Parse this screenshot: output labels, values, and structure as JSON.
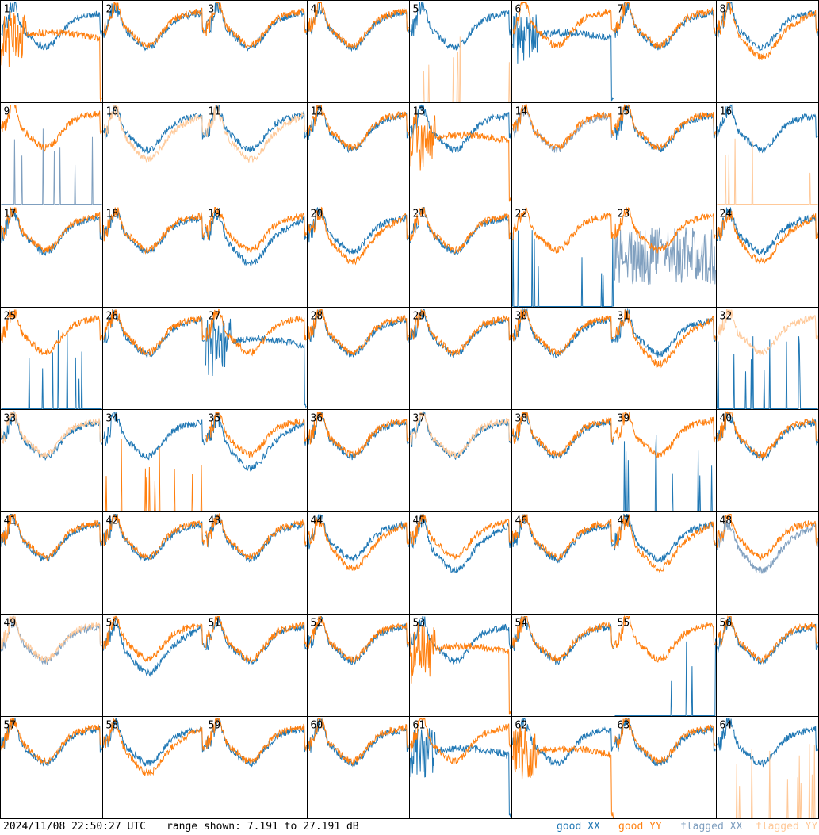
{
  "footer": {
    "timestamp": "2024/11/08 22:50:27 UTC",
    "range_text": "range shown: 7.191 to 27.191 dB"
  },
  "legend": [
    {
      "key": "good_xx",
      "label": "good XX",
      "color": "#1f77b4"
    },
    {
      "key": "good_yy",
      "label": "good YY",
      "color": "#ff7f0e"
    },
    {
      "key": "flagged_xx",
      "label": "flagged XX",
      "color": "#7f9fbf"
    },
    {
      "key": "flagged_yy",
      "label": "flagged YY",
      "color": "#ffc999"
    }
  ],
  "chart_data": {
    "type": "line",
    "layout": "small-multiples 8x8",
    "ylim": [
      7.191,
      27.191
    ],
    "yunit": "dB",
    "panels": [
      {
        "label": "1",
        "xx": "good",
        "yy": "good",
        "xx_shape": "normal",
        "yy_shape": "dip"
      },
      {
        "label": "2",
        "xx": "good",
        "yy": "good",
        "xx_shape": "normal",
        "yy_shape": "normal"
      },
      {
        "label": "3",
        "xx": "good",
        "yy": "good",
        "xx_shape": "normal",
        "yy_shape": "normal"
      },
      {
        "label": "4",
        "xx": "good",
        "yy": "good",
        "xx_shape": "normal",
        "yy_shape": "normal"
      },
      {
        "label": "5",
        "xx": "good",
        "yy": "flagged",
        "xx_shape": "normal",
        "yy_shape": "spikes"
      },
      {
        "label": "6",
        "xx": "good",
        "yy": "good",
        "xx_shape": "dip",
        "yy_shape": "normal"
      },
      {
        "label": "7",
        "xx": "good",
        "yy": "good",
        "xx_shape": "normal",
        "yy_shape": "normal"
      },
      {
        "label": "8",
        "xx": "good",
        "yy": "good",
        "xx_shape": "normal",
        "yy_shape": "low"
      },
      {
        "label": "9",
        "xx": "flagged",
        "yy": "good",
        "xx_shape": "spikes",
        "yy_shape": "normal"
      },
      {
        "label": "10",
        "xx": "good",
        "yy": "flagged",
        "xx_shape": "normal",
        "yy_shape": "low"
      },
      {
        "label": "11",
        "xx": "good",
        "yy": "flagged",
        "xx_shape": "normal",
        "yy_shape": "low"
      },
      {
        "label": "12",
        "xx": "good",
        "yy": "good",
        "xx_shape": "normal",
        "yy_shape": "normal"
      },
      {
        "label": "13",
        "xx": "good",
        "yy": "good",
        "xx_shape": "normal",
        "yy_shape": "dip"
      },
      {
        "label": "14",
        "xx": "flagged",
        "yy": "good",
        "xx_shape": "normal",
        "yy_shape": "normal"
      },
      {
        "label": "15",
        "xx": "good",
        "yy": "good",
        "xx_shape": "normal",
        "yy_shape": "normal"
      },
      {
        "label": "16",
        "xx": "good",
        "yy": "flagged",
        "xx_shape": "normal",
        "yy_shape": "spikes"
      },
      {
        "label": "17",
        "xx": "good",
        "yy": "good",
        "xx_shape": "normal",
        "yy_shape": "normal"
      },
      {
        "label": "18",
        "xx": "good",
        "yy": "good",
        "xx_shape": "normal",
        "yy_shape": "normal"
      },
      {
        "label": "19",
        "xx": "good",
        "yy": "good",
        "xx_shape": "low",
        "yy_shape": "normal"
      },
      {
        "label": "20",
        "xx": "good",
        "yy": "good",
        "xx_shape": "normal",
        "yy_shape": "low"
      },
      {
        "label": "21",
        "xx": "good",
        "yy": "good",
        "xx_shape": "normal",
        "yy_shape": "normal"
      },
      {
        "label": "22",
        "xx": "good",
        "yy": "good",
        "xx_shape": "spikes",
        "yy_shape": "normal"
      },
      {
        "label": "23",
        "xx": "flagged",
        "yy": "good",
        "xx_shape": "noise",
        "yy_shape": "normal"
      },
      {
        "label": "24",
        "xx": "good",
        "yy": "good",
        "xx_shape": "normal",
        "yy_shape": "low"
      },
      {
        "label": "25",
        "xx": "good",
        "yy": "good",
        "xx_shape": "spikes",
        "yy_shape": "normal"
      },
      {
        "label": "26",
        "xx": "good",
        "yy": "good",
        "xx_shape": "normal",
        "yy_shape": "normal"
      },
      {
        "label": "27",
        "xx": "good",
        "yy": "good",
        "xx_shape": "dip",
        "yy_shape": "normal"
      },
      {
        "label": "28",
        "xx": "good",
        "yy": "good",
        "xx_shape": "normal",
        "yy_shape": "normal"
      },
      {
        "label": "29",
        "xx": "good",
        "yy": "good",
        "xx_shape": "normal",
        "yy_shape": "normal"
      },
      {
        "label": "30",
        "xx": "good",
        "yy": "good",
        "xx_shape": "normal",
        "yy_shape": "normal"
      },
      {
        "label": "31",
        "xx": "good",
        "yy": "good",
        "xx_shape": "normal",
        "yy_shape": "low"
      },
      {
        "label": "32",
        "xx": "good",
        "yy": "flagged",
        "xx_shape": "spikes",
        "yy_shape": "normal"
      },
      {
        "label": "33",
        "xx": "good",
        "yy": "flagged",
        "xx_shape": "normal",
        "yy_shape": "normal"
      },
      {
        "label": "34",
        "xx": "good",
        "yy": "good",
        "xx_shape": "normal",
        "yy_shape": "spikes"
      },
      {
        "label": "35",
        "xx": "good",
        "yy": "good",
        "xx_shape": "low",
        "yy_shape": "normal"
      },
      {
        "label": "36",
        "xx": "good",
        "yy": "good",
        "xx_shape": "normal",
        "yy_shape": "normal"
      },
      {
        "label": "37",
        "xx": "good",
        "yy": "flagged",
        "xx_shape": "normal",
        "yy_shape": "normal"
      },
      {
        "label": "38",
        "xx": "good",
        "yy": "good",
        "xx_shape": "normal",
        "yy_shape": "normal"
      },
      {
        "label": "39",
        "xx": "good",
        "yy": "good",
        "xx_shape": "spikes",
        "yy_shape": "normal"
      },
      {
        "label": "40",
        "xx": "good",
        "yy": "good",
        "xx_shape": "normal",
        "yy_shape": "normal"
      },
      {
        "label": "41",
        "xx": "good",
        "yy": "good",
        "xx_shape": "normal",
        "yy_shape": "normal"
      },
      {
        "label": "42",
        "xx": "good",
        "yy": "good",
        "xx_shape": "normal",
        "yy_shape": "normal"
      },
      {
        "label": "43",
        "xx": "good",
        "yy": "good",
        "xx_shape": "normal",
        "yy_shape": "normal"
      },
      {
        "label": "44",
        "xx": "good",
        "yy": "good",
        "xx_shape": "normal",
        "yy_shape": "low"
      },
      {
        "label": "45",
        "xx": "good",
        "yy": "good",
        "xx_shape": "low",
        "yy_shape": "normal"
      },
      {
        "label": "46",
        "xx": "good",
        "yy": "good",
        "xx_shape": "normal",
        "yy_shape": "normal"
      },
      {
        "label": "47",
        "xx": "good",
        "yy": "good",
        "xx_shape": "normal",
        "yy_shape": "low"
      },
      {
        "label": "48",
        "xx": "flagged",
        "yy": "good",
        "xx_shape": "low",
        "yy_shape": "normal"
      },
      {
        "label": "49",
        "xx": "flagged",
        "yy": "flagged",
        "xx_shape": "normal",
        "yy_shape": "normal"
      },
      {
        "label": "50",
        "xx": "good",
        "yy": "good",
        "xx_shape": "low",
        "yy_shape": "normal"
      },
      {
        "label": "51",
        "xx": "good",
        "yy": "good",
        "xx_shape": "normal",
        "yy_shape": "normal"
      },
      {
        "label": "52",
        "xx": "good",
        "yy": "good",
        "xx_shape": "normal",
        "yy_shape": "normal"
      },
      {
        "label": "53",
        "xx": "good",
        "yy": "good",
        "xx_shape": "normal",
        "yy_shape": "dip"
      },
      {
        "label": "54",
        "xx": "good",
        "yy": "good",
        "xx_shape": "normal",
        "yy_shape": "normal"
      },
      {
        "label": "55",
        "xx": "good",
        "yy": "good",
        "xx_shape": "spikes",
        "yy_shape": "normal"
      },
      {
        "label": "56",
        "xx": "good",
        "yy": "good",
        "xx_shape": "normal",
        "yy_shape": "normal"
      },
      {
        "label": "57",
        "xx": "good",
        "yy": "good",
        "xx_shape": "normal",
        "yy_shape": "normal"
      },
      {
        "label": "58",
        "xx": "good",
        "yy": "good",
        "xx_shape": "normal",
        "yy_shape": "low"
      },
      {
        "label": "59",
        "xx": "good",
        "yy": "good",
        "xx_shape": "normal",
        "yy_shape": "normal"
      },
      {
        "label": "60",
        "xx": "good",
        "yy": "good",
        "xx_shape": "normal",
        "yy_shape": "normal"
      },
      {
        "label": "61",
        "xx": "good",
        "yy": "good",
        "xx_shape": "dip",
        "yy_shape": "normal"
      },
      {
        "label": "62",
        "xx": "good",
        "yy": "good",
        "xx_shape": "normal",
        "yy_shape": "dip"
      },
      {
        "label": "63",
        "xx": "good",
        "yy": "good",
        "xx_shape": "normal",
        "yy_shape": "normal"
      },
      {
        "label": "64",
        "xx": "good",
        "yy": "flagged",
        "xx_shape": "normal",
        "yy_shape": "spikes"
      }
    ]
  }
}
